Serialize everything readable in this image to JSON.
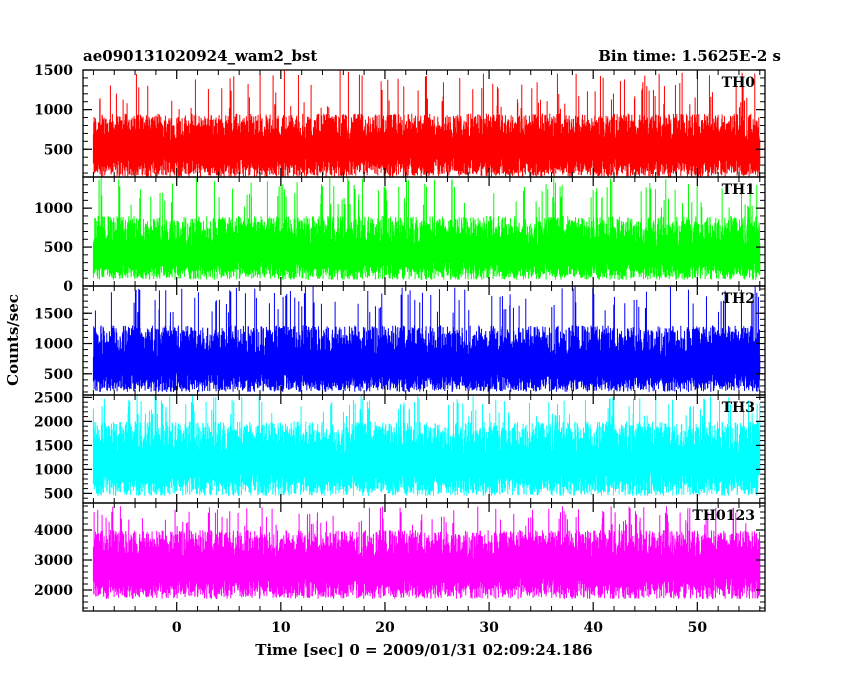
{
  "header": {
    "left": "ae090131020924_wam2_bst",
    "right": "Bin time: 1.5625E-2 s"
  },
  "axes": {
    "xlabel": "Time [sec] 0 = 2009/01/31 02:09:24.186",
    "ylabel": "Counts/sec"
  },
  "chart_data": {
    "type": "line",
    "x_range": [
      -9,
      56.5
    ],
    "x_ticks": [
      0,
      10,
      20,
      30,
      40,
      50
    ],
    "x_tick_labels": [
      "0",
      "10",
      "20",
      "30",
      "40",
      "50"
    ],
    "data_x_range": [
      -8,
      56
    ],
    "bin_time_s": 0.015625,
    "shared_x": true,
    "panels": [
      {
        "label": "TH0",
        "color": "#ff0000",
        "ylim": [
          150,
          1500
        ],
        "yticks": [
          500,
          1000,
          1500
        ],
        "ytick_labels": [
          "500",
          "1000",
          "1500"
        ],
        "typical_range": [
          150,
          950
        ],
        "peak_range": [
          1000,
          1500
        ],
        "mean": 580
      },
      {
        "label": "TH1",
        "color": "#00ff00",
        "ylim": [
          0,
          1400
        ],
        "yticks": [
          0,
          500,
          1000
        ],
        "ytick_labels": [
          "0",
          "500",
          "1000"
        ],
        "typical_range": [
          80,
          900
        ],
        "peak_range": [
          1000,
          1400
        ],
        "mean": 500
      },
      {
        "label": "TH2",
        "color": "#0000ff",
        "ylim": [
          150,
          1950
        ],
        "yticks": [
          500,
          1000,
          1500
        ],
        "ytick_labels": [
          "500",
          "1000",
          "1500"
        ],
        "typical_range": [
          200,
          1300
        ],
        "peak_range": [
          1500,
          1950
        ],
        "mean": 760
      },
      {
        "label": "TH3",
        "color": "#00ffff",
        "ylim": [
          300,
          2550
        ],
        "yticks": [
          500,
          1000,
          1500,
          2000,
          2500
        ],
        "ytick_labels": [
          "500",
          "1000",
          "1500",
          "2000",
          "2500"
        ],
        "typical_range": [
          450,
          2000
        ],
        "peak_range": [
          2100,
          2550
        ],
        "mean": 1300
      },
      {
        "label": "TH0123",
        "color": "#ff00ff",
        "ylim": [
          1300,
          4900
        ],
        "yticks": [
          2000,
          3000,
          4000
        ],
        "ytick_labels": [
          "2000",
          "3000",
          "4000"
        ],
        "typical_range": [
          1700,
          4000
        ],
        "peak_range": [
          4100,
          4800
        ],
        "mean": 3000
      }
    ]
  }
}
